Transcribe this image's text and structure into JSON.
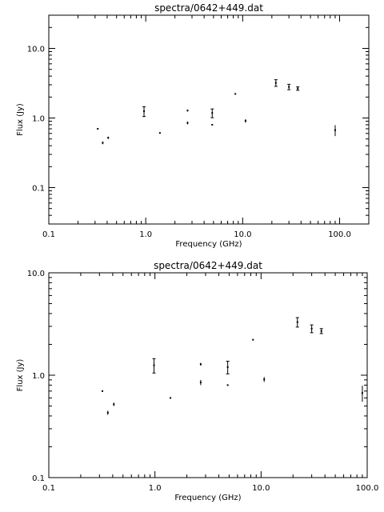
{
  "chart_data": [
    {
      "type": "scatter",
      "title": "spectra/0642+449.dat",
      "xlabel": "Frequency (GHz)",
      "ylabel": "Flux (Jy)",
      "xscale": "log",
      "yscale": "log",
      "xlim": [
        0.1,
        200
      ],
      "ylim": [
        0.03,
        30
      ],
      "x_tick_labels": [
        "0.1",
        "1.0",
        "10.0",
        "100.0"
      ],
      "y_tick_labels": [
        "0.1",
        "1.0",
        "10.0"
      ],
      "grid": false,
      "points": [
        {
          "x": 0.32,
          "y": 0.7,
          "err": 0
        },
        {
          "x": 0.36,
          "y": 0.44,
          "err": 0.02
        },
        {
          "x": 0.41,
          "y": 0.52,
          "err": 0.02
        },
        {
          "x": 0.96,
          "y": 1.25,
          "err": 0.2
        },
        {
          "x": 1.4,
          "y": 0.61,
          "err": 0
        },
        {
          "x": 2.7,
          "y": 1.28,
          "err": 0.04
        },
        {
          "x": 2.7,
          "y": 0.85,
          "err": 0.04
        },
        {
          "x": 4.85,
          "y": 1.18,
          "err": 0.17
        },
        {
          "x": 4.85,
          "y": 0.8,
          "err": 0
        },
        {
          "x": 8.4,
          "y": 2.22,
          "err": 0
        },
        {
          "x": 10.7,
          "y": 0.91,
          "err": 0.05
        },
        {
          "x": 22.0,
          "y": 3.2,
          "err": 0.35
        },
        {
          "x": 30.0,
          "y": 2.8,
          "err": 0.25
        },
        {
          "x": 37.0,
          "y": 2.65,
          "err": 0.15
        },
        {
          "x": 90.0,
          "y": 0.67,
          "err": 0.12
        }
      ]
    },
    {
      "type": "scatter",
      "title": "spectra/0642+449.dat",
      "xlabel": "Frequency (GHz)",
      "ylabel": "Flux (Jy)",
      "xscale": "log",
      "yscale": "log",
      "xlim": [
        0.1,
        100
      ],
      "ylim": [
        0.1,
        10
      ],
      "x_tick_labels": [
        "0.1",
        "1.0",
        "10.0",
        "100.0"
      ],
      "y_tick_labels": [
        "0.1",
        "1.0",
        "10.0"
      ],
      "grid": false,
      "points": [
        {
          "x": 0.32,
          "y": 0.7,
          "err": 0
        },
        {
          "x": 0.36,
          "y": 0.43,
          "err": 0.02
        },
        {
          "x": 0.41,
          "y": 0.52,
          "err": 0.02
        },
        {
          "x": 0.98,
          "y": 1.25,
          "err": 0.2
        },
        {
          "x": 1.4,
          "y": 0.6,
          "err": 0
        },
        {
          "x": 2.7,
          "y": 1.28,
          "err": 0.04
        },
        {
          "x": 2.7,
          "y": 0.85,
          "err": 0.05
        },
        {
          "x": 4.85,
          "y": 1.2,
          "err": 0.17
        },
        {
          "x": 4.85,
          "y": 0.8,
          "err": 0
        },
        {
          "x": 8.4,
          "y": 2.22,
          "err": 0
        },
        {
          "x": 10.7,
          "y": 0.91,
          "err": 0.05
        },
        {
          "x": 22.0,
          "y": 3.3,
          "err": 0.35
        },
        {
          "x": 30.0,
          "y": 2.85,
          "err": 0.25
        },
        {
          "x": 37.0,
          "y": 2.7,
          "err": 0.15
        },
        {
          "x": 90.0,
          "y": 0.67,
          "err": 0.12
        }
      ]
    }
  ]
}
